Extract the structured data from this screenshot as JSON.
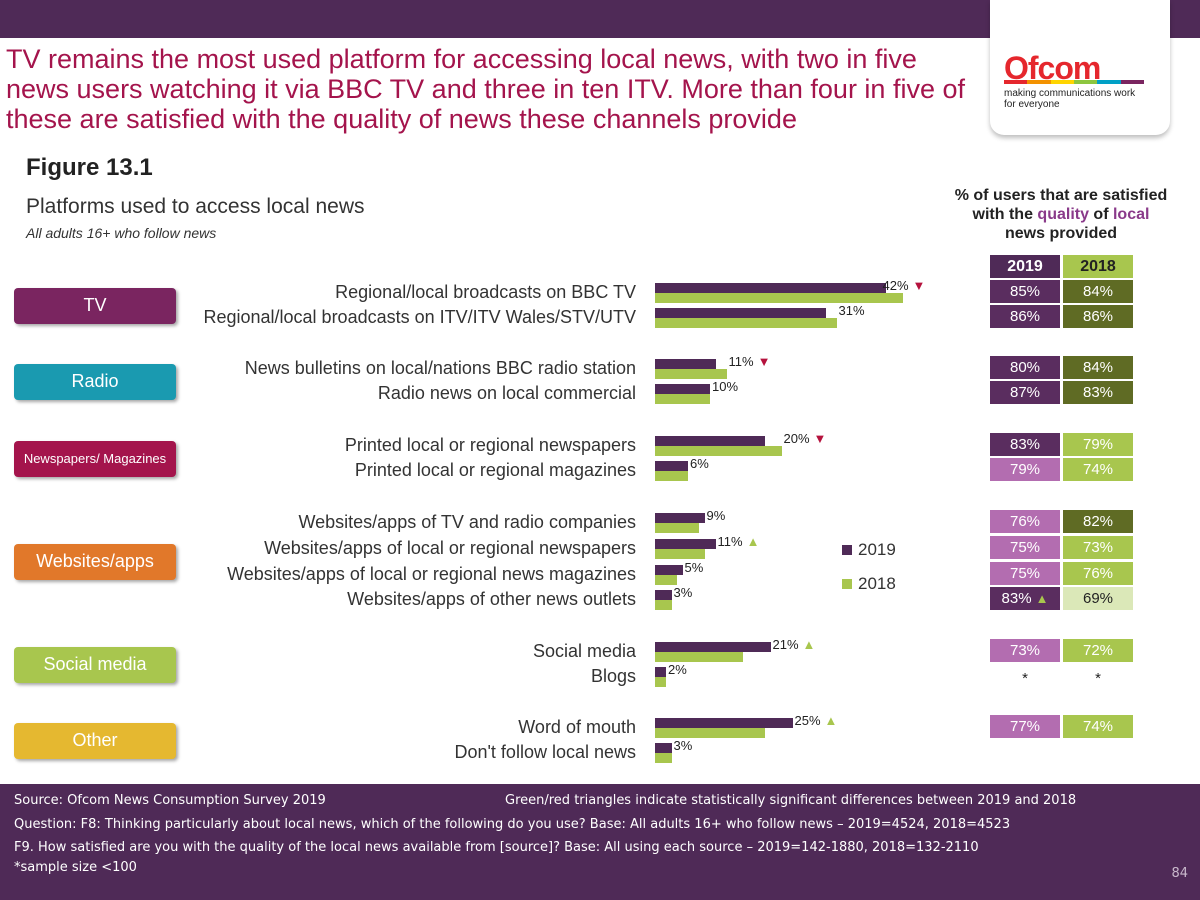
{
  "headline": "TV remains the most used platform for accessing local news, with two in five news users watching it via BBC TV and three in ten ITV.  More than four in five of these are satisfied with the quality of news these channels provide",
  "logo": {
    "word": "Ofcom",
    "tagline_1": "making communications work",
    "tagline_2": "for everyone"
  },
  "figure_title": "Figure 13.1",
  "colors": {
    "purple": "#4f2a57",
    "green": "#a8c64e",
    "headline": "#a4144c",
    "tri_down": "#b5123d",
    "tri_up": "#a8c64e"
  },
  "chart_data": {
    "type": "bar",
    "orientation": "horizontal",
    "title": "Platforms used to access local news",
    "subtitle": "All adults 16+ who follow news",
    "unit": "%",
    "xlim": [
      0,
      100
    ],
    "legend": [
      "2019",
      "2018"
    ],
    "legend_colors": [
      "#4f2a57",
      "#a8c64e"
    ],
    "groups": [
      {
        "name": "TV",
        "color": "#7a2560"
      },
      {
        "name": "Radio",
        "color": "#1a9ab0"
      },
      {
        "name": "Newspapers/ Magazines",
        "color": "#a4144c"
      },
      {
        "name": "Websites/apps",
        "color": "#e1782a"
      },
      {
        "name": "Social media",
        "color": "#a8c64e"
      },
      {
        "name": "Other",
        "color": "#e5b830"
      }
    ],
    "rows": [
      {
        "label": "Regional/local broadcasts on BBC TV",
        "v2019": 42,
        "v2018": 45,
        "value_label": "42%",
        "tri": "down"
      },
      {
        "label": "Regional/local broadcasts on ITV/ITV Wales/STV/UTV",
        "v2019": 31,
        "v2018": 33,
        "value_label": "31%",
        "tri": ""
      },
      {
        "label": "News bulletins on local/nations BBC radio station",
        "v2019": 11,
        "v2018": 13,
        "value_label": "11%",
        "tri": "down"
      },
      {
        "label": "Radio news on local commercial",
        "v2019": 10,
        "v2018": 10,
        "value_label": "10%",
        "tri": ""
      },
      {
        "label": "Printed local or regional newspapers",
        "v2019": 20,
        "v2018": 23,
        "value_label": "20%",
        "tri": "down"
      },
      {
        "label": "Printed local or regional magazines",
        "v2019": 6,
        "v2018": 6,
        "value_label": "6%",
        "tri": ""
      },
      {
        "label": "Websites/apps of TV and radio companies",
        "v2019": 9,
        "v2018": 8,
        "value_label": "9%",
        "tri": ""
      },
      {
        "label": "Websites/apps of local or regional newspapers",
        "v2019": 11,
        "v2018": 9,
        "value_label": "11%",
        "tri": "up"
      },
      {
        "label": "Websites/apps of local or regional news magazines",
        "v2019": 5,
        "v2018": 4,
        "value_label": "5%",
        "tri": ""
      },
      {
        "label": "Websites/apps of other news outlets",
        "v2019": 3,
        "v2018": 3,
        "value_label": "3%",
        "tri": ""
      },
      {
        "label": "Social media",
        "v2019": 21,
        "v2018": 16,
        "value_label": "21%",
        "tri": "up"
      },
      {
        "label": "Blogs",
        "v2019": 2,
        "v2018": 2,
        "value_label": "2%",
        "tri": ""
      },
      {
        "label": "Word of mouth",
        "v2019": 25,
        "v2018": 20,
        "value_label": "25%",
        "tri": "up"
      },
      {
        "label": "Don't follow local news",
        "v2019": 3,
        "v2018": 3,
        "value_label": "3%",
        "tri": ""
      }
    ],
    "satisfaction": {
      "header_1": "% of users that are satisfied",
      "header_2a": "with the ",
      "header_2b": "quality",
      "header_2c": " of ",
      "header_2d": "local",
      "header_3": "news provided",
      "col_2019": "2019",
      "col_2018": "2018",
      "note": "*sample size <100",
      "rows": [
        {
          "s2019": "85%",
          "s2018": "84%",
          "c2019": "#5a2d5f",
          "c2018": "#5f6b24",
          "tri": ""
        },
        {
          "s2019": "86%",
          "s2018": "86%",
          "c2019": "#5a2d5f",
          "c2018": "#5f6b24",
          "tri": ""
        },
        {
          "s2019": "80%",
          "s2018": "84%",
          "c2019": "#5a2d5f",
          "c2018": "#5f6b24",
          "tri": ""
        },
        {
          "s2019": "87%",
          "s2018": "83%",
          "c2019": "#5a2d5f",
          "c2018": "#5f6b24",
          "tri": ""
        },
        {
          "s2019": "83%",
          "s2018": "79%",
          "c2019": "#5a2d5f",
          "c2018": "#a8c64e",
          "tri": ""
        },
        {
          "s2019": "79%",
          "s2018": "74%",
          "c2019": "#b36db0",
          "c2018": "#a8c64e",
          "tri": ""
        },
        {
          "s2019": "76%",
          "s2018": "82%",
          "c2019": "#b36db0",
          "c2018": "#5f6b24",
          "tri": ""
        },
        {
          "s2019": "75%",
          "s2018": "73%",
          "c2019": "#b36db0",
          "c2018": "#a8c64e",
          "tri": ""
        },
        {
          "s2019": "75%",
          "s2018": "76%",
          "c2019": "#b36db0",
          "c2018": "#a8c64e",
          "tri": ""
        },
        {
          "s2019": "83%",
          "s2018": "69%",
          "c2019": "#5a2d5f",
          "c2018": "#dbe8b8",
          "tri": "up"
        },
        {
          "s2019": "73%",
          "s2018": "72%",
          "c2019": "#b36db0",
          "c2018": "#a8c64e",
          "tri": ""
        },
        {
          "s2019": "*",
          "s2018": "*",
          "c2019": "",
          "c2018": "",
          "tri": ""
        },
        {
          "s2019": "77%",
          "s2018": "74%",
          "c2019": "#b36db0",
          "c2018": "#a8c64e",
          "tri": ""
        },
        null
      ]
    }
  },
  "footer": {
    "source": "Source: Ofcom News Consumption Survey 2019",
    "triangles_note": "Green/red triangles indicate statistically significant differences between 2019 and 2018",
    "question_1": "Question: F8: Thinking particularly about local news, which of the following do you use?   Base: All adults 16+ who follow news – 2019=4524, 2018=4523",
    "question_2": "F9. How satisfied are you with the quality of the local news available from [source]?  Base: All using each source – 2019=142-1880, 2018=132-2110",
    "page_number": "84"
  }
}
